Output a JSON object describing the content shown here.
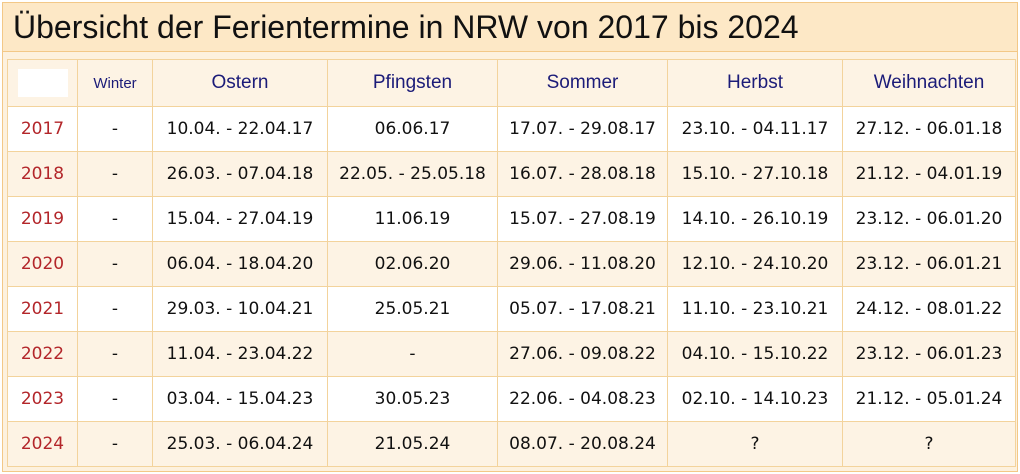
{
  "title": "Übersicht der Ferientermine in NRW von 2017 bis 2024",
  "table": {
    "columns": [
      "Winter",
      "Ostern",
      "Pfingsten",
      "Sommer",
      "Herbst",
      "Weihnachten"
    ],
    "rows": [
      {
        "year": "2017",
        "cells": [
          "-",
          "10.04. - 22.04.17",
          "06.06.17",
          "17.07. - 29.08.17",
          "23.10. - 04.11.17",
          "27.12. - 06.01.18"
        ]
      },
      {
        "year": "2018",
        "cells": [
          "-",
          "26.03. - 07.04.18",
          "22.05. - 25.05.18",
          "16.07. - 28.08.18",
          "15.10. - 27.10.18",
          "21.12. - 04.01.19"
        ]
      },
      {
        "year": "2019",
        "cells": [
          "-",
          "15.04. - 27.04.19",
          "11.06.19",
          "15.07. - 27.08.19",
          "14.10. - 26.10.19",
          "23.12. - 06.01.20"
        ]
      },
      {
        "year": "2020",
        "cells": [
          "-",
          "06.04. - 18.04.20",
          "02.06.20",
          "29.06. - 11.08.20",
          "12.10. - 24.10.20",
          "23.12. - 06.01.21"
        ]
      },
      {
        "year": "2021",
        "cells": [
          "-",
          "29.03. - 10.04.21",
          "25.05.21",
          "05.07. - 17.08.21",
          "11.10. - 23.10.21",
          "24.12. - 08.01.22"
        ]
      },
      {
        "year": "2022",
        "cells": [
          "-",
          "11.04. - 23.04.22",
          "-",
          "27.06. - 09.08.22",
          "04.10. - 15.10.22",
          "23.12. - 06.01.23"
        ]
      },
      {
        "year": "2023",
        "cells": [
          "-",
          "03.04. - 15.04.23",
          "30.05.23",
          "22.06. - 04.08.23",
          "02.10. - 14.10.23",
          "21.12. - 05.01.24"
        ]
      },
      {
        "year": "2024",
        "cells": [
          "-",
          "25.03. - 06.04.24",
          "21.05.24",
          "08.07. - 20.08.24",
          "?",
          "?"
        ]
      }
    ]
  }
}
